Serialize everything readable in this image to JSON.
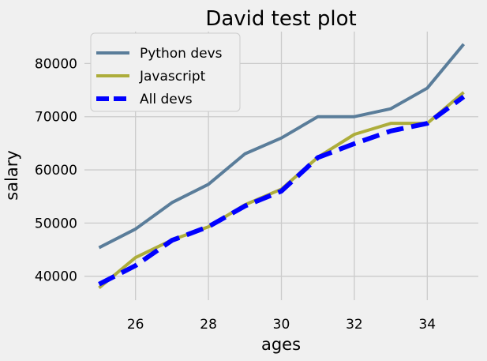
{
  "chart_data": {
    "type": "line",
    "title": "David test plot",
    "xlabel": "ages",
    "ylabel": "salary",
    "x": [
      25,
      26,
      27,
      28,
      29,
      30,
      31,
      32,
      33,
      34,
      35
    ],
    "xlim": [
      24.6,
      35.4
    ],
    "ylim": [
      35500,
      86000
    ],
    "x_ticks": [
      26,
      28,
      30,
      32,
      34
    ],
    "x_tick_labels": [
      "26",
      "28",
      "30",
      "32",
      "34"
    ],
    "y_ticks": [
      40000,
      50000,
      60000,
      70000,
      80000
    ],
    "y_tick_labels": [
      "40000",
      "50000",
      "60000",
      "70000",
      "80000"
    ],
    "grid": true,
    "legend_position": "top-left",
    "series": [
      {
        "name": "Python devs",
        "color": "#5a7d9a",
        "dash": "solid",
        "values": [
          45372,
          48876,
          53850,
          57287,
          63016,
          65998,
          70003,
          70000,
          71496,
          75370,
          83640
        ]
      },
      {
        "name": "Javascript",
        "color": "#adad3b",
        "dash": "solid",
        "values": [
          37810,
          43515,
          46823,
          49293,
          53437,
          56373,
          62375,
          66674,
          68745,
          68746,
          74583
        ]
      },
      {
        "name": "All devs",
        "color": "#0000ff",
        "dash": "dashed",
        "values": [
          38496,
          42000,
          46752,
          49320,
          53200,
          56000,
          62316,
          64928,
          67317,
          68748,
          73752
        ]
      }
    ]
  }
}
